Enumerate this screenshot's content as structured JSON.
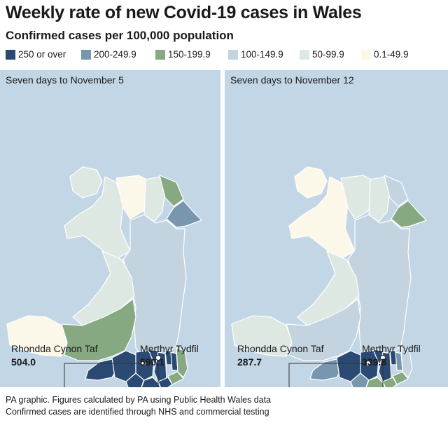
{
  "title": "Weekly rate of new Covid-19 cases in Wales",
  "subtitle": "Confirmed cases per 100,000 population",
  "legend": [
    {
      "label": "250 or over",
      "color": "#2a4a73"
    },
    {
      "label": "200-249.9",
      "color": "#7896ae"
    },
    {
      "label": "150-199.9",
      "color": "#86a981"
    },
    {
      "label": "100-149.9",
      "color": "#c3d4e0"
    },
    {
      "label": "50-99.9",
      "color": "#dde8e3"
    },
    {
      "label": "0.1-49.9",
      "color": "#fbf8e9"
    }
  ],
  "panels": [
    {
      "title": "Seven days to November 5",
      "rhondda": {
        "name": "Rhondda Cynon Taf",
        "value": "504.0"
      },
      "merthyr": {
        "name": "Merthyr Tydfil",
        "value": "590.1"
      }
    },
    {
      "title": "Seven days to November 12",
      "rhondda": {
        "name": "Rhondda Cynon Taf",
        "value": "287.7"
      },
      "merthyr": {
        "name": "Merthyr Tydfil",
        "value": "339.8"
      }
    }
  ],
  "footer": {
    "line1": "PA graphic. Figures calculated by PA using Public Health Wales data",
    "line2": "Confirmed cases are identified through NHS and commercial testing"
  }
}
